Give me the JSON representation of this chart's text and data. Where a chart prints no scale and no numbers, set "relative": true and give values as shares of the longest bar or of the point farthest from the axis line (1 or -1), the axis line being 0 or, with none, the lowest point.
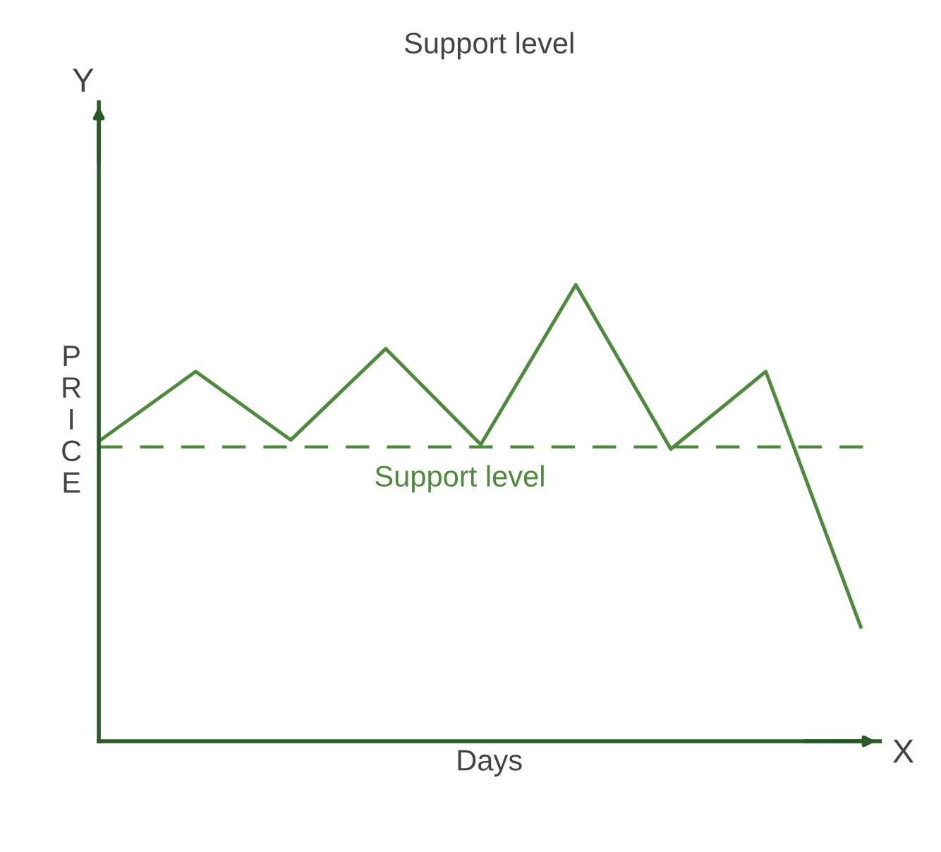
{
  "chart_data": {
    "type": "line",
    "title": "Support level",
    "xlabel": "Days",
    "ylabel": "PRICE",
    "relative": true,
    "categories": [
      null,
      null,
      null,
      null,
      null,
      null,
      null,
      null,
      null
    ],
    "series": [
      {
        "color": "#4e8a3c",
        "values": [
          0.66,
          0.81,
          0.66,
          0.86,
          0.65,
          1,
          0.64,
          0.81,
          0.25
        ]
      }
    ],
    "ref_lines": [
      {
        "axis": "y",
        "value": 0.645,
        "label": "Support level",
        "color": "#4e8a3c",
        "line_style": "dashed"
      }
    ],
    "annotations": [
      "Y",
      "X"
    ],
    "legend": false,
    "marker": "none",
    "line_style": "solid"
  }
}
